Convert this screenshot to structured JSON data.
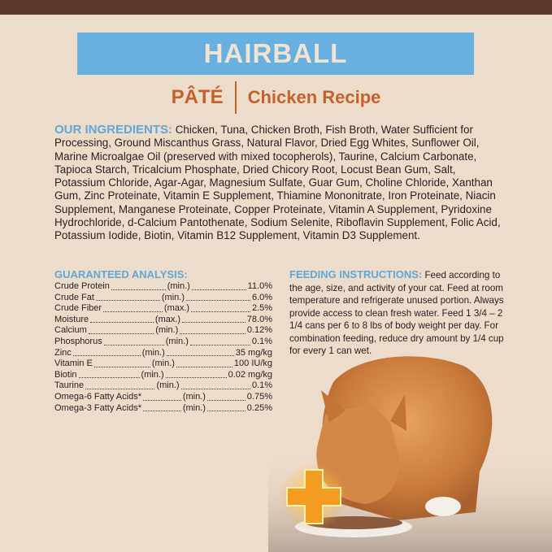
{
  "header": {
    "title": "HAIRBALL",
    "style": "PÂTÉ",
    "recipe": "Chicken Recipe"
  },
  "ingredients": {
    "heading": "OUR INGREDIENTS:",
    "text": "Chicken, Tuna, Chicken Broth, Fish Broth, Water Sufficient for Processing, Ground Miscanthus Grass, Natural Flavor, Dried Egg Whites, Sunflower Oil, Marine Microalgae Oil (preserved with mixed tocopherols), Taurine, Calcium Carbonate, Tapioca Starch, Tricalcium Phosphate, Dried Chicory Root, Locust Bean Gum, Salt, Potassium Chloride, Agar-Agar, Magnesium Sulfate, Guar Gum, Choline Chloride, Xanthan Gum, Zinc Proteinate, Vitamin E Supplement, Thiamine Mononitrate, Iron Proteinate, Niacin Supplement, Manganese Proteinate, Copper Proteinate, Vitamin A Supplement, Pyridoxine Hydrochloride, d-Calcium Pantothenate, Sodium Selenite, Riboflavin Supplement, Folic Acid, Potassium Iodide, Biotin, Vitamin B12 Supplement, Vitamin D3 Supplement."
  },
  "analysis": {
    "heading": "GUARANTEED ANALYSIS:",
    "rows": [
      {
        "nutrient": "Crude Protein",
        "basis": "(min.)",
        "value": "11.0%"
      },
      {
        "nutrient": "Crude Fat",
        "basis": "(min.)",
        "value": "6.0%"
      },
      {
        "nutrient": "Crude Fiber",
        "basis": "(max.)",
        "value": "2.5%"
      },
      {
        "nutrient": "Moisture",
        "basis": "(max.)",
        "value": "78.0%"
      },
      {
        "nutrient": "Calcium",
        "basis": "(min.)",
        "value": "0.12%"
      },
      {
        "nutrient": "Phosphorus",
        "basis": "(min.)",
        "value": "0.1%"
      },
      {
        "nutrient": "Zinc",
        "basis": "(min.)",
        "value": "35 mg/kg"
      },
      {
        "nutrient": "Vitamin E",
        "basis": "(min.)",
        "value": "100 IU/kg"
      },
      {
        "nutrient": "Biotin",
        "basis": "(min.)",
        "value": "0.02 mg/kg"
      },
      {
        "nutrient": "Taurine",
        "basis": "(min.)",
        "value": "0.1%"
      },
      {
        "nutrient": "Omega-6 Fatty Acids*",
        "basis": "(min.)",
        "value": "0.75%"
      },
      {
        "nutrient": "Omega-3 Fatty Acids*",
        "basis": "(min.)",
        "value": "0.25%"
      }
    ]
  },
  "feeding": {
    "heading": "FEEDING INSTRUCTIONS:",
    "text": "Feed according to the age, size, and activity of your cat. Feed at room temperature and refrigerate unused portion. Always provide access to clean fresh water. Feed 1 3/4 – 2 1/4 cans per 6 to 8 lbs of body weight per day. For combination feeding, reduce dry amount by 1/4 cup for every 1 can wet."
  },
  "colors": {
    "background": "#eedccb",
    "banner": "#67b0e0",
    "accent": "#c3622a",
    "heading": "#5fa8d9",
    "topbar": "#5a3a28"
  },
  "icons": [
    "plus-badge-icon"
  ]
}
